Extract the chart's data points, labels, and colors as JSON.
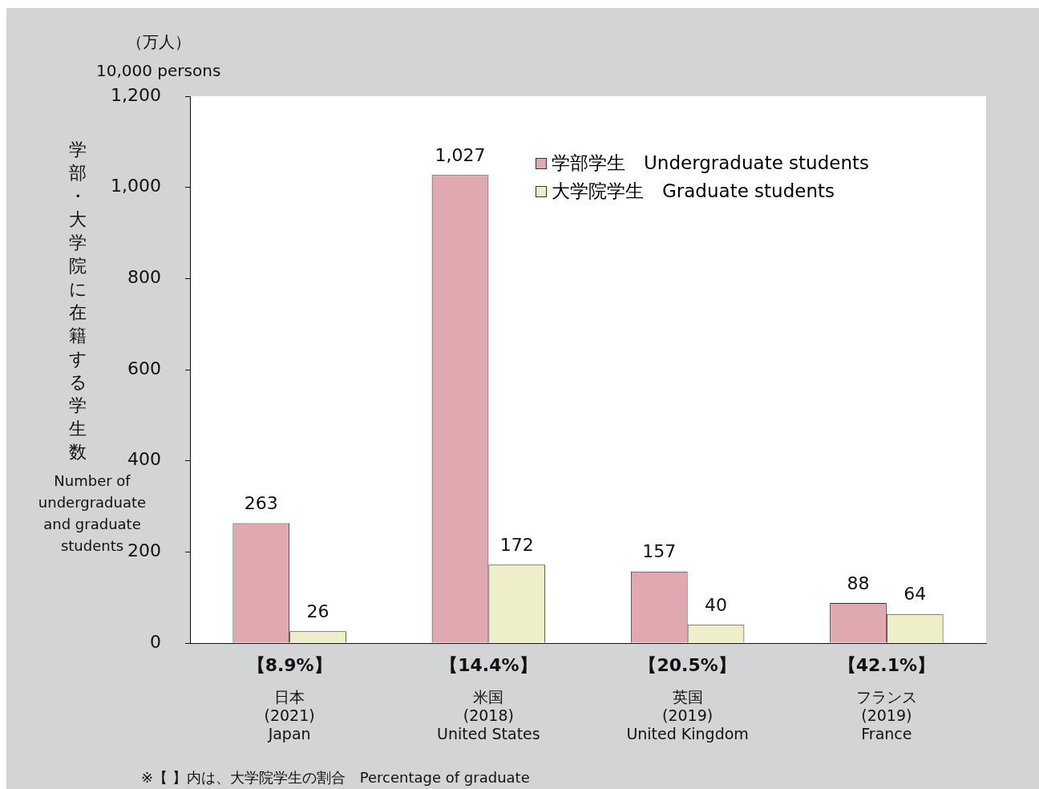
{
  "chart_data": {
    "type": "bar",
    "categories": [
      "日本\n(2021)\nJapan",
      "米国\n(2018)\nUnited States",
      "英国\n(2019)\nUnited Kingdom",
      "フランス\n(2019)\nFrance"
    ],
    "series": [
      {
        "name": "学部学生　Undergraduate students",
        "color": "#e0a9b0",
        "values": [
          263,
          1027,
          157,
          88
        ],
        "value_labels": [
          "263",
          "1,027",
          "157",
          "88"
        ]
      },
      {
        "name": "大学院学生　Graduate students",
        "color": "#eeefc9",
        "values": [
          26,
          172,
          40,
          64
        ],
        "value_labels": [
          "26",
          "172",
          "40",
          "64"
        ]
      }
    ],
    "ylabel": "学部・大学院に在籍する学生数\nNumber of undergraduate and graduate students",
    "ylim": [
      0,
      1200
    ],
    "yticks": [
      0,
      200,
      400,
      600,
      800,
      {
        "value": 1000,
        "label": "1,000"
      },
      {
        "value": 1200,
        "label": "1,200"
      }
    ],
    "annotations": [
      "（万人）\n10,000 persons",
      "※【 】内は、大学院学生の割合　Percentage of graduate",
      "【8.9%】",
      "【14.4%】",
      "【20.5%】",
      "【42.1%】"
    ],
    "legend": "top right",
    "grid": false
  }
}
